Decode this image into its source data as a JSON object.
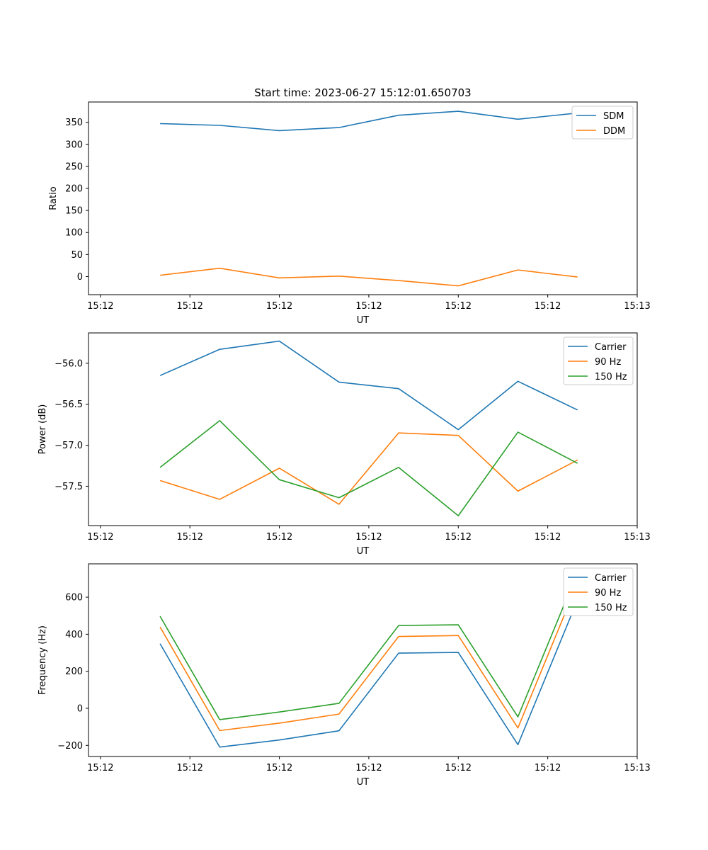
{
  "title": "Start time: 2023-06-27 15:12:01.650703",
  "colors": {
    "c0": "#1f77b4",
    "c1": "#ff7f0e",
    "c2": "#2ca02c"
  },
  "chart_data": [
    {
      "type": "line",
      "xlabel": "UT",
      "ylabel": "Ratio",
      "x": [
        1,
        2,
        3,
        4,
        5,
        6,
        7,
        8
      ],
      "x_ticks": [
        0,
        1.5,
        3,
        4.5,
        6,
        7.5,
        9
      ],
      "x_tick_labels": [
        "15:12",
        "15:12",
        "15:12",
        "15:12",
        "15:12",
        "15:12",
        "15:13"
      ],
      "xlim": [
        -0.2,
        9
      ],
      "y_ticks": [
        0,
        50,
        100,
        150,
        200,
        250,
        300,
        350
      ],
      "ylim": [
        -41,
        396
      ],
      "legend": "top-right",
      "series": [
        {
          "name": "SDM",
          "color": "#1f77b4",
          "values": [
            347,
            343,
            331,
            338,
            366,
            375,
            357,
            371
          ]
        },
        {
          "name": "DDM",
          "color": "#ff7f0e",
          "values": [
            3,
            19,
            -3,
            1,
            -9,
            -21,
            15,
            -1
          ]
        }
      ]
    },
    {
      "type": "line",
      "xlabel": "UT",
      "ylabel": "Power (dB)",
      "x": [
        1,
        2,
        3,
        4,
        5,
        6,
        7,
        8
      ],
      "x_ticks": [
        0,
        1.5,
        3,
        4.5,
        6,
        7.5,
        9
      ],
      "x_tick_labels": [
        "15:12",
        "15:12",
        "15:12",
        "15:12",
        "15:12",
        "15:12",
        "15:13"
      ],
      "xlim": [
        -0.2,
        9
      ],
      "y_ticks": [
        -57.5,
        -57.0,
        -56.5,
        -56.0
      ],
      "y_tick_labels": [
        "−57.5",
        "−57.0",
        "−56.5",
        "−56.0"
      ],
      "ylim": [
        -57.98,
        -55.63
      ],
      "legend": "top-right",
      "series": [
        {
          "name": "Carrier",
          "color": "#1f77b4",
          "values": [
            -56.15,
            -55.83,
            -55.73,
            -56.23,
            -56.31,
            -56.81,
            -56.22,
            -56.57
          ]
        },
        {
          "name": "90 Hz",
          "color": "#ff7f0e",
          "values": [
            -57.43,
            -57.66,
            -57.28,
            -57.72,
            -56.85,
            -56.88,
            -57.56,
            -57.18
          ]
        },
        {
          "name": "150 Hz",
          "color": "#2ca02c",
          "values": [
            -57.27,
            -56.7,
            -57.42,
            -57.64,
            -57.27,
            -57.86,
            -56.84,
            -57.22
          ]
        }
      ]
    },
    {
      "type": "line",
      "xlabel": "UT",
      "ylabel": "Frequency (Hz)",
      "x": [
        1,
        2,
        3,
        4,
        5,
        6,
        7,
        8
      ],
      "x_ticks": [
        0,
        1.5,
        3,
        4.5,
        6,
        7.5,
        9
      ],
      "x_tick_labels": [
        "15:12",
        "15:12",
        "15:12",
        "15:12",
        "15:12",
        "15:12",
        "15:13"
      ],
      "xlim": [
        -0.2,
        9
      ],
      "y_ticks": [
        -200,
        0,
        200,
        400,
        600
      ],
      "y_tick_labels": [
        "−200",
        "0",
        "200",
        "400",
        "600"
      ],
      "ylim": [
        -260,
        780
      ],
      "legend": "top-right",
      "series": [
        {
          "name": "Carrier",
          "color": "#1f77b4",
          "values": [
            349,
            -209,
            -171,
            -121,
            298,
            302,
            -196,
            585
          ]
        },
        {
          "name": "90 Hz",
          "color": "#ff7f0e",
          "values": [
            439,
            -120,
            -80,
            -31,
            388,
            393,
            -106,
            677
          ]
        },
        {
          "name": "150 Hz",
          "color": "#2ca02c",
          "values": [
            497,
            -61,
            -20,
            27,
            447,
            451,
            -46,
            735
          ]
        }
      ]
    }
  ]
}
